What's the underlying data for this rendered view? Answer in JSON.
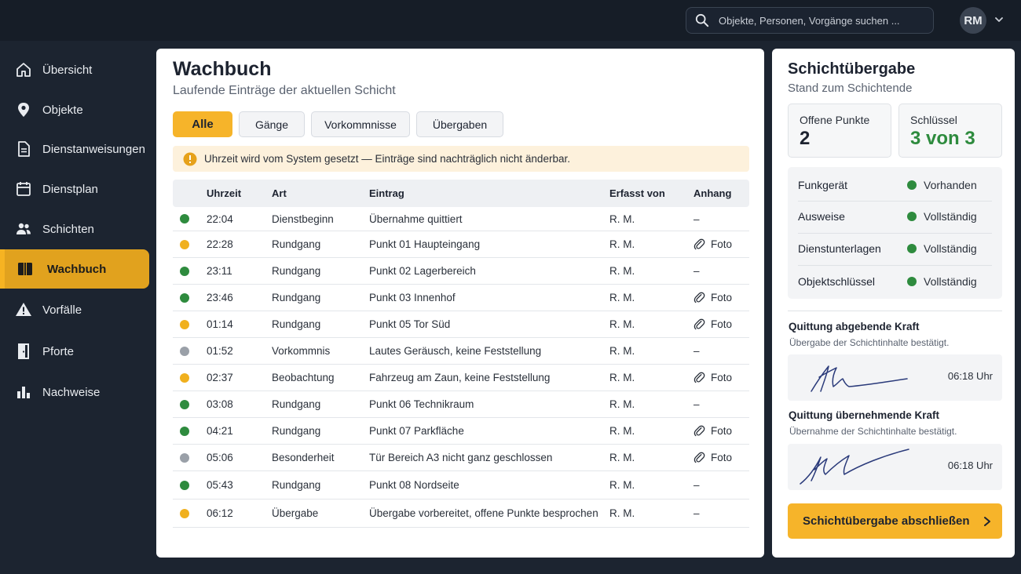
{
  "header": {
    "search_placeholder": "Objekte, Personen, Vorgänge suchen ...",
    "user_initials": "RM"
  },
  "sidebar": {
    "items": [
      {
        "label": "Übersicht",
        "icon": "home-icon"
      },
      {
        "label": "Objekte",
        "icon": "location-pin-icon"
      },
      {
        "label": "Dienstanweisungen",
        "icon": "document-icon"
      },
      {
        "label": "Dienstplan",
        "icon": "calendar-icon"
      },
      {
        "label": "Schichten",
        "icon": "people-icon"
      },
      {
        "label": "Wachbuch",
        "icon": "book-icon",
        "active": true
      },
      {
        "label": "Vorfälle",
        "icon": "warning-icon"
      },
      {
        "label": "Pforte",
        "icon": "door-icon"
      },
      {
        "label": "Nachweise",
        "icon": "bar-chart-icon"
      }
    ]
  },
  "main": {
    "title": "Wachbuch",
    "subtitle": "Laufende Einträge der aktuellen Schicht",
    "tabs": [
      {
        "label": "Alle",
        "active": true
      },
      {
        "label": "Gänge"
      },
      {
        "label": "Vorkommnisse"
      },
      {
        "label": "Übergaben"
      }
    ],
    "notice": "Uhrzeit wird vom System gesetzt — Einträge sind nachträglich nicht änderbar.",
    "columns": {
      "time": "Uhrzeit",
      "type": "Art",
      "entry": "Eintrag",
      "by": "Erfasst von",
      "attachment": "Anhang"
    },
    "rows": [
      {
        "status": "#2e8b3e",
        "time": "22:04",
        "type": "Dienstbeginn",
        "entry": "Übernahme quittiert",
        "by": "R. M.",
        "attachment": "–",
        "has_file": false
      },
      {
        "status": "#f0b01e",
        "time": "22:28",
        "type": "Rundgang",
        "entry": "Punkt 01 Haupteingang",
        "by": "R. M.",
        "attachment": "Foto",
        "has_file": true
      },
      {
        "status": "#2e8b3e",
        "time": "23:11",
        "type": "Rundgang",
        "entry": "Punkt 02 Lagerbereich",
        "by": "R. M.",
        "attachment": "–",
        "has_file": false
      },
      {
        "status": "#2e8b3e",
        "time": "23:46",
        "type": "Rundgang",
        "entry": "Punkt 03 Innenhof",
        "by": "R. M.",
        "attachment": "Foto",
        "has_file": true
      },
      {
        "status": "#f0b01e",
        "time": "01:14",
        "type": "Rundgang",
        "entry": "Punkt 05 Tor Süd",
        "by": "R. M.",
        "attachment": "Foto",
        "has_file": true
      },
      {
        "status": "#9aa0a8",
        "time": "01:52",
        "type": "Vorkommnis",
        "entry": "Lautes Geräusch, keine Feststellung",
        "by": "R. M.",
        "attachment": "–",
        "has_file": false
      },
      {
        "status": "#f0b01e",
        "time": "02:37",
        "type": "Beobachtung",
        "entry": "Fahrzeug am Zaun, keine Feststellung",
        "by": "R. M.",
        "attachment": "Foto",
        "has_file": true
      },
      {
        "status": "#2e8b3e",
        "time": "03:08",
        "type": "Rundgang",
        "entry": "Punkt 06 Technikraum",
        "by": "R. M.",
        "attachment": "–",
        "has_file": false
      },
      {
        "status": "#2e8b3e",
        "time": "04:21",
        "type": "Rundgang",
        "entry": "Punkt 07 Parkfläche",
        "by": "R. M.",
        "attachment": "Foto",
        "has_file": true
      },
      {
        "status": "#9aa0a8",
        "time": "05:06",
        "type": "Besonderheit",
        "entry": "Tür Bereich A3 nicht ganz geschlossen",
        "by": "R. M.",
        "attachment": "Foto",
        "has_file": true
      },
      {
        "status": "#2e8b3e",
        "time": "05:43",
        "type": "Rundgang",
        "entry": "Punkt 08 Nordseite",
        "by": "R. M.",
        "attachment": "–",
        "has_file": false
      },
      {
        "status": "#f0b01e",
        "time": "06:12",
        "type": "Übergabe",
        "entry": "Übergabe vorbereitet, offene Punkte besprochen",
        "by": "R. M.",
        "attachment": "–",
        "has_file": false
      }
    ]
  },
  "handover": {
    "title": "Schichtübergabe",
    "subtitle": "Stand zum Schichtende",
    "open_points_label": "Offene Punkte",
    "open_points_value": "2",
    "keys_label": "Schlüssel",
    "keys_value": "3 von 3",
    "status_items": [
      {
        "label": "Funkgerät",
        "value": "Vorhanden"
      },
      {
        "label": "Ausweise",
        "value": "Vollständig"
      },
      {
        "label": "Dienstunterlagen",
        "value": "Vollständig"
      },
      {
        "label": "Objektschlüssel",
        "value": "Vollständig"
      }
    ],
    "sign_out_title": "Quittung abgebende Kraft",
    "sign_out_sub": "Übergabe der Schichtinhalte bestätigt.",
    "sign_out_time": "06:18 Uhr",
    "sign_in_title": "Quittung übernehmende Kraft",
    "sign_in_sub": "Übernahme der Schichtinhalte bestätigt.",
    "sign_in_time": "06:18 Uhr",
    "cta_label": "Schichtübergabe abschließen"
  },
  "colors": {
    "accent": "#f6b42a",
    "ok": "#2e8b3e",
    "warn": "#f0b01e",
    "neutral": "#9aa0a8"
  }
}
